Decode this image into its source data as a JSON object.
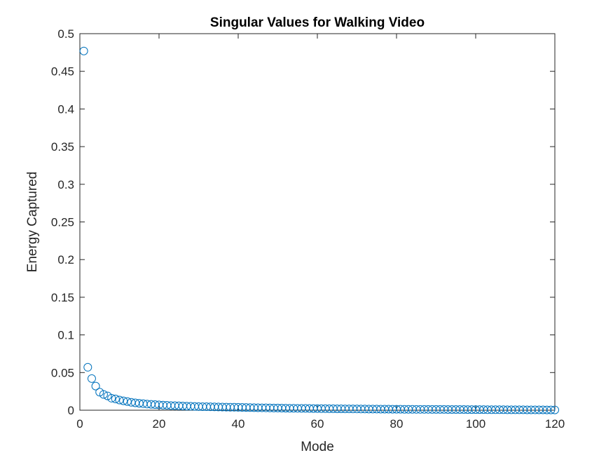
{
  "chart_data": {
    "type": "scatter",
    "title": "Singular Values for Walking Video",
    "xlabel": "Mode",
    "ylabel": "Energy Captured",
    "xlim": [
      0,
      120
    ],
    "ylim": [
      0,
      0.5
    ],
    "xticks": [
      0,
      20,
      40,
      60,
      80,
      100,
      120
    ],
    "xtick_labels": [
      "0",
      "20",
      "40",
      "60",
      "80",
      "100",
      "120"
    ],
    "yticks": [
      0,
      0.05,
      0.1,
      0.15,
      0.2,
      0.25,
      0.3,
      0.35,
      0.4,
      0.45,
      0.5
    ],
    "ytick_labels": [
      "0",
      "0.05",
      "0.1",
      "0.15",
      "0.2",
      "0.25",
      "0.3",
      "0.35",
      "0.4",
      "0.45",
      "0.5"
    ],
    "grid": false,
    "marker": "open-circle",
    "marker_color": "#0072BD",
    "series": [
      {
        "x": [
          1,
          2,
          3,
          4,
          5,
          6,
          7,
          8,
          9,
          10,
          11,
          12,
          13,
          14,
          15,
          16,
          17,
          18,
          19,
          20,
          21,
          22,
          23,
          24,
          25,
          26,
          27,
          28,
          29,
          30,
          31,
          32,
          33,
          34,
          35,
          36,
          37,
          38,
          39,
          40,
          41,
          42,
          43,
          44,
          45,
          46,
          47,
          48,
          49,
          50,
          51,
          52,
          53,
          54,
          55,
          56,
          57,
          58,
          59,
          60,
          61,
          62,
          63,
          64,
          65,
          66,
          67,
          68,
          69,
          70,
          71,
          72,
          73,
          74,
          75,
          76,
          77,
          78,
          79,
          80,
          81,
          82,
          83,
          84,
          85,
          86,
          87,
          88,
          89,
          90,
          91,
          92,
          93,
          94,
          95,
          96,
          97,
          98,
          99,
          100,
          101,
          102,
          103,
          104,
          105,
          106,
          107,
          108,
          109,
          110,
          111,
          112,
          113,
          114,
          115,
          116,
          117,
          118,
          119,
          120
        ],
        "values": [
          0.477,
          0.057,
          0.042,
          0.032,
          0.024,
          0.021,
          0.019,
          0.016,
          0.015,
          0.0135,
          0.0125,
          0.0115,
          0.0105,
          0.0098,
          0.0092,
          0.0087,
          0.0082,
          0.0078,
          0.0074,
          0.0071,
          0.0068,
          0.0065,
          0.0062,
          0.006,
          0.0058,
          0.0056,
          0.0054,
          0.0052,
          0.005,
          0.0048,
          0.0047,
          0.0046,
          0.0045,
          0.0044,
          0.0043,
          0.0042,
          0.0041,
          0.004,
          0.0039,
          0.0038,
          0.0037,
          0.0036,
          0.0035,
          0.0034,
          0.0033,
          0.0032,
          0.0031,
          0.003,
          0.0029,
          0.0029,
          0.0028,
          0.0027,
          0.0026,
          0.0026,
          0.0025,
          0.0024,
          0.0024,
          0.0023,
          0.0022,
          0.0022,
          0.0021,
          0.0021,
          0.002,
          0.002,
          0.0019,
          0.0019,
          0.0018,
          0.0018,
          0.0017,
          0.0017,
          0.0016,
          0.0016,
          0.0015,
          0.0015,
          0.0015,
          0.0014,
          0.0014,
          0.0014,
          0.0013,
          0.0013,
          0.0013,
          0.0012,
          0.0012,
          0.0012,
          0.0011,
          0.0011,
          0.0011,
          0.0011,
          0.001,
          0.001,
          0.001,
          0.001,
          0.0009,
          0.0009,
          0.0009,
          0.0009,
          0.0009,
          0.0008,
          0.0008,
          0.0008,
          0.0008,
          0.0008,
          0.0007,
          0.0007,
          0.0007,
          0.0007,
          0.0007,
          0.0006,
          0.0006,
          0.0006,
          0.0006,
          0.0006,
          0.0005,
          0.0005,
          0.0005,
          0.0005,
          0.0005,
          0.0004,
          0.0004,
          0.0004
        ]
      }
    ]
  }
}
